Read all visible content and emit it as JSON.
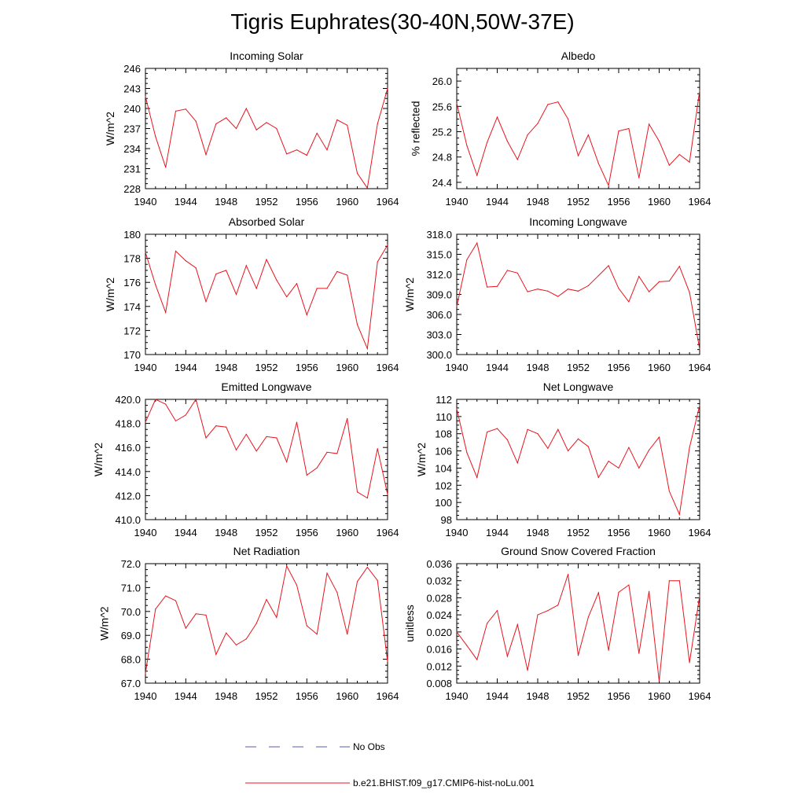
{
  "title": "Tigris Euphrates(30-40N,50W-37E)",
  "legend": {
    "obs_label": "No Obs",
    "obs_color": "#5a5ab4",
    "model_label": "b.e21.BHIST.f09_g17.CMIP6-hist-noLu.001",
    "model_color": "#e8141e"
  },
  "chart_data": [
    {
      "type": "line",
      "title": "Incoming Solar",
      "ylabel": "W/m^2",
      "xlim": [
        1940,
        1964
      ],
      "ylim": [
        228,
        246
      ],
      "yticks": [
        "228",
        "231",
        "234",
        "237",
        "240",
        "243",
        "246"
      ],
      "xticks": [
        "1940",
        "1944",
        "1948",
        "1952",
        "1956",
        "1960",
        "1964"
      ],
      "x": [
        1940,
        1941,
        1942,
        1943,
        1944,
        1945,
        1946,
        1947,
        1948,
        1949,
        1950,
        1951,
        1952,
        1953,
        1954,
        1955,
        1956,
        1957,
        1958,
        1959,
        1960,
        1961,
        1962,
        1963,
        1964
      ],
      "series": [
        {
          "values": [
            241.8,
            235.8,
            231.2,
            239.6,
            239.9,
            238.1,
            233.1,
            237.7,
            238.6,
            237.0,
            240.0,
            236.8,
            237.9,
            237.0,
            233.2,
            233.8,
            233.0,
            236.3,
            233.8,
            238.3,
            237.5,
            230.3,
            228.1,
            237.7,
            243.0
          ]
        }
      ]
    },
    {
      "type": "line",
      "title": "Albedo",
      "ylabel": "% reflected",
      "xlim": [
        1940,
        1964
      ],
      "ylim": [
        24.3,
        26.2
      ],
      "yticks": [
        "24.4",
        "24.8",
        "25.2",
        "25.6",
        "26.0"
      ],
      "xticks": [
        "1940",
        "1944",
        "1948",
        "1952",
        "1956",
        "1960",
        "1964"
      ],
      "x": [
        1940,
        1941,
        1942,
        1943,
        1944,
        1945,
        1946,
        1947,
        1948,
        1949,
        1950,
        1951,
        1952,
        1953,
        1954,
        1955,
        1956,
        1957,
        1958,
        1959,
        1960,
        1961,
        1962,
        1963,
        1964
      ],
      "series": [
        {
          "values": [
            25.65,
            24.98,
            24.51,
            25.03,
            25.43,
            25.05,
            24.76,
            25.15,
            25.33,
            25.63,
            25.67,
            25.4,
            24.82,
            25.15,
            24.7,
            24.35,
            25.21,
            25.25,
            24.47,
            25.32,
            25.05,
            24.67,
            24.84,
            24.72,
            25.85
          ]
        }
      ]
    },
    {
      "type": "line",
      "title": "Absorbed Solar",
      "ylabel": "W/m^2",
      "xlim": [
        1940,
        1964
      ],
      "ylim": [
        170,
        180
      ],
      "yticks": [
        "170",
        "172",
        "174",
        "176",
        "178",
        "180"
      ],
      "xticks": [
        "1940",
        "1944",
        "1948",
        "1952",
        "1956",
        "1960",
        "1964"
      ],
      "x": [
        1940,
        1941,
        1942,
        1943,
        1944,
        1945,
        1946,
        1947,
        1948,
        1949,
        1950,
        1951,
        1952,
        1953,
        1954,
        1955,
        1956,
        1957,
        1958,
        1959,
        1960,
        1961,
        1962,
        1963,
        1964
      ],
      "series": [
        {
          "values": [
            178.5,
            175.8,
            173.5,
            178.6,
            177.8,
            177.2,
            174.4,
            176.7,
            177.0,
            175.0,
            177.4,
            175.5,
            177.9,
            176.2,
            174.8,
            175.9,
            173.3,
            175.5,
            175.5,
            176.9,
            176.6,
            172.5,
            170.5,
            177.7,
            179.1
          ]
        }
      ]
    },
    {
      "type": "line",
      "title": "Incoming Longwave",
      "ylabel": "W/m^2",
      "xlim": [
        1940,
        1964
      ],
      "ylim": [
        300,
        318
      ],
      "yticks": [
        "300.0",
        "303.0",
        "306.0",
        "309.0",
        "312.0",
        "315.0",
        "318.0"
      ],
      "xticks": [
        "1940",
        "1944",
        "1948",
        "1952",
        "1956",
        "1960",
        "1964"
      ],
      "x": [
        1940,
        1941,
        1942,
        1943,
        1944,
        1945,
        1946,
        1947,
        1948,
        1949,
        1950,
        1951,
        1952,
        1953,
        1954,
        1955,
        1956,
        1957,
        1958,
        1959,
        1960,
        1961,
        1962,
        1963,
        1964
      ],
      "series": [
        {
          "values": [
            307.2,
            314.2,
            316.7,
            310.1,
            310.2,
            312.6,
            312.2,
            309.4,
            309.8,
            309.5,
            308.7,
            309.8,
            309.5,
            310.3,
            311.8,
            313.3,
            309.9,
            307.9,
            311.7,
            309.4,
            310.9,
            311.0,
            313.2,
            309.3,
            300.8
          ]
        }
      ]
    },
    {
      "type": "line",
      "title": "Emitted Longwave",
      "ylabel": "W/m^2",
      "xlim": [
        1940,
        1964
      ],
      "ylim": [
        410,
        420
      ],
      "yticks": [
        "410.0",
        "412.0",
        "414.0",
        "416.0",
        "418.0",
        "420.0"
      ],
      "xticks": [
        "1940",
        "1944",
        "1948",
        "1952",
        "1956",
        "1960",
        "1964"
      ],
      "x": [
        1940,
        1941,
        1942,
        1943,
        1944,
        1945,
        1946,
        1947,
        1948,
        1949,
        1950,
        1951,
        1952,
        1953,
        1954,
        1955,
        1956,
        1957,
        1958,
        1959,
        1960,
        1961,
        1962,
        1963,
        1964
      ],
      "series": [
        {
          "values": [
            418.1,
            420.0,
            419.6,
            418.2,
            418.7,
            420.0,
            416.8,
            417.8,
            417.7,
            415.8,
            417.1,
            415.7,
            416.9,
            416.8,
            414.8,
            418.1,
            413.7,
            414.3,
            415.6,
            415.5,
            418.4,
            412.3,
            411.8,
            415.9,
            412.1
          ]
        }
      ]
    },
    {
      "type": "line",
      "title": "Net Longwave",
      "ylabel": "W/m^2",
      "xlim": [
        1940,
        1964
      ],
      "ylim": [
        98,
        112
      ],
      "yticks": [
        "98",
        "100",
        "102",
        "104",
        "106",
        "108",
        "110",
        "112"
      ],
      "xticks": [
        "1940",
        "1944",
        "1948",
        "1952",
        "1956",
        "1960",
        "1964"
      ],
      "x": [
        1940,
        1941,
        1942,
        1943,
        1944,
        1945,
        1946,
        1947,
        1948,
        1949,
        1950,
        1951,
        1952,
        1953,
        1954,
        1955,
        1956,
        1957,
        1958,
        1959,
        1960,
        1961,
        1962,
        1963,
        1964
      ],
      "series": [
        {
          "values": [
            110.9,
            105.8,
            102.9,
            108.2,
            108.6,
            107.3,
            104.6,
            108.5,
            108.0,
            106.3,
            108.5,
            106.0,
            107.4,
            106.5,
            102.9,
            104.8,
            104.0,
            106.4,
            104.0,
            106.1,
            107.6,
            101.3,
            98.6,
            106.4,
            111.3
          ]
        }
      ]
    },
    {
      "type": "line",
      "title": "Net Radiation",
      "ylabel": "W/m^2",
      "xlim": [
        1940,
        1964
      ],
      "ylim": [
        67,
        72
      ],
      "yticks": [
        "67.0",
        "68.0",
        "69.0",
        "70.0",
        "71.0",
        "72.0"
      ],
      "xticks": [
        "1940",
        "1944",
        "1948",
        "1952",
        "1956",
        "1960",
        "1964"
      ],
      "x": [
        1940,
        1941,
        1942,
        1943,
        1944,
        1945,
        1946,
        1947,
        1948,
        1949,
        1950,
        1951,
        1952,
        1953,
        1954,
        1955,
        1956,
        1957,
        1958,
        1959,
        1960,
        1961,
        1962,
        1963,
        1964
      ],
      "series": [
        {
          "values": [
            67.4,
            70.1,
            70.65,
            70.45,
            69.3,
            69.9,
            69.85,
            68.2,
            69.1,
            68.6,
            68.85,
            69.5,
            70.5,
            69.75,
            71.9,
            71.1,
            69.4,
            69.05,
            71.6,
            70.8,
            69.05,
            71.25,
            71.85,
            71.3,
            67.9
          ]
        }
      ]
    },
    {
      "type": "line",
      "title": "Ground Snow Covered Fraction",
      "ylabel": "unitless",
      "xlim": [
        1940,
        1964
      ],
      "ylim": [
        0.008,
        0.036
      ],
      "yticks": [
        "0.008",
        "0.012",
        "0.016",
        "0.020",
        "0.024",
        "0.028",
        "0.032",
        "0.036"
      ],
      "xticks": [
        "1940",
        "1944",
        "1948",
        "1952",
        "1956",
        "1960",
        "1964"
      ],
      "x": [
        1940,
        1941,
        1942,
        1943,
        1944,
        1945,
        1946,
        1947,
        1948,
        1949,
        1950,
        1951,
        1952,
        1953,
        1954,
        1955,
        1956,
        1957,
        1958,
        1959,
        1960,
        1961,
        1962,
        1963,
        1964
      ],
      "series": [
        {
          "values": [
            0.02,
            0.0168,
            0.0135,
            0.022,
            0.025,
            0.0143,
            0.0217,
            0.011,
            0.024,
            0.025,
            0.0263,
            0.0335,
            0.0145,
            0.0235,
            0.0292,
            0.0157,
            0.0293,
            0.031,
            0.015,
            0.0295,
            0.0085,
            0.032,
            0.032,
            0.0128,
            0.0285
          ]
        }
      ]
    }
  ]
}
